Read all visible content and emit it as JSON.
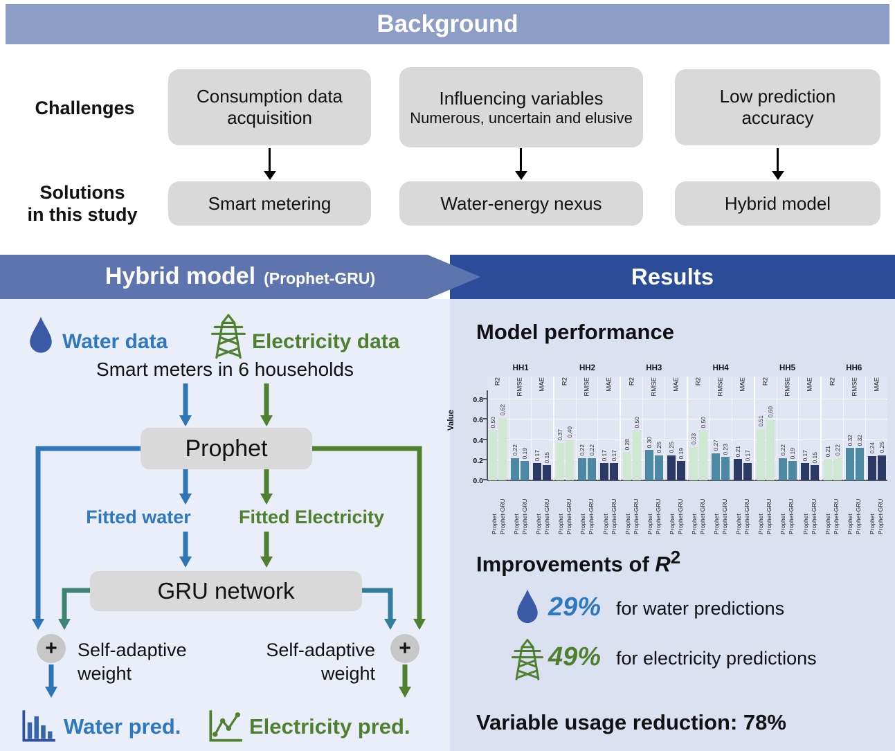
{
  "colors": {
    "background_header": "#8c9dc6",
    "hybrid_header": "#5d74ae",
    "results_header": "#2b4c98",
    "left_panel_bg": "#eaeef8",
    "right_panel_bg": "#dce1f2",
    "box_gray": "#d9d9d9",
    "water_blue": "#2e78bf",
    "droplet_blue": "#3b5aa5",
    "electricity_green": "#4e8030",
    "arrow_blue": "#2e75b6",
    "gru_left_arrow_teal": "#3f8573",
    "gru_right_arrow_teal": "#337d9d"
  },
  "background": {
    "title": "Background",
    "challenges_label": "Challenges",
    "solutions_label_line1": "Solutions",
    "solutions_label_line2": "in this study",
    "columns": [
      {
        "challenge": "Consumption data acquisition",
        "challenge_sub": "",
        "solution": "Smart metering"
      },
      {
        "challenge": "Influencing variables",
        "challenge_sub": "Numerous, uncertain and elusive",
        "solution": "Water-energy nexus"
      },
      {
        "challenge": "Low prediction accuracy",
        "challenge_sub": "",
        "solution": "Hybrid model"
      }
    ]
  },
  "hybrid": {
    "header_title": "Hybrid model",
    "header_subtitle": "(Prophet-GRU)",
    "water_data_label": "Water data",
    "electricity_data_label": "Electricity data",
    "smart_meters_text": "Smart meters in 6 households",
    "prophet_box_label": "Prophet",
    "fitted_water_label": "Fitted water",
    "fitted_electricity_label": "Fitted Electricity",
    "gru_box_label": "GRU network",
    "plus_symbol": "+",
    "self_adaptive_line1": "Self-adaptive",
    "self_adaptive_line2": "weight",
    "water_pred_label": "Water pred.",
    "electricity_pred_label": "Electricity pred."
  },
  "results": {
    "header_title": "Results",
    "model_performance_title": "Model performance",
    "improvements_title": "Improvements of ",
    "improvements_symbol": "R",
    "improvements_superscript": "2",
    "water_improvement_value": "29%",
    "water_improvement_text": "for water predictions",
    "electricity_improvement_value": "49%",
    "electricity_improvement_text": "for electricity predictions",
    "variable_reduction_text": "Variable usage reduction: 78%"
  },
  "chart_data": {
    "type": "bar",
    "title": "Model performance",
    "ylabel": "Value",
    "ylim": [
      0,
      0.85
    ],
    "yticks": [
      0.0,
      0.2,
      0.4,
      0.6,
      0.8
    ],
    "grid": true,
    "legend_position": "none",
    "households": [
      "HH1",
      "HH2",
      "HH3",
      "HH4",
      "HH5",
      "HH6"
    ],
    "metrics": [
      "R2",
      "RMSE",
      "MAE"
    ],
    "models": [
      "Prophet",
      "Prophet-GRU"
    ],
    "bar_colors": {
      "R2": "#cfe8d4",
      "RMSE": "#4d89a3",
      "MAE": "#2a3a64"
    },
    "values": {
      "HH1": {
        "R2": [
          0.5,
          0.62
        ],
        "RMSE": [
          0.22,
          0.19
        ],
        "MAE": [
          0.17,
          0.15
        ]
      },
      "HH2": {
        "R2": [
          0.37,
          0.4
        ],
        "RMSE": [
          0.22,
          0.22
        ],
        "MAE": [
          0.17,
          0.17
        ]
      },
      "HH3": {
        "R2": [
          0.28,
          0.5
        ],
        "RMSE": [
          0.3,
          0.25
        ],
        "MAE": [
          0.25,
          0.19
        ]
      },
      "HH4": {
        "R2": [
          0.33,
          0.5
        ],
        "RMSE": [
          0.27,
          0.23
        ],
        "MAE": [
          0.21,
          0.17
        ]
      },
      "HH5": {
        "R2": [
          0.51,
          0.6
        ],
        "RMSE": [
          0.22,
          0.19
        ],
        "MAE": [
          0.17,
          0.15
        ]
      },
      "HH6": {
        "R2": [
          0.21,
          0.22
        ],
        "RMSE": [
          0.32,
          0.32
        ],
        "MAE": [
          0.24,
          0.25
        ]
      }
    }
  }
}
